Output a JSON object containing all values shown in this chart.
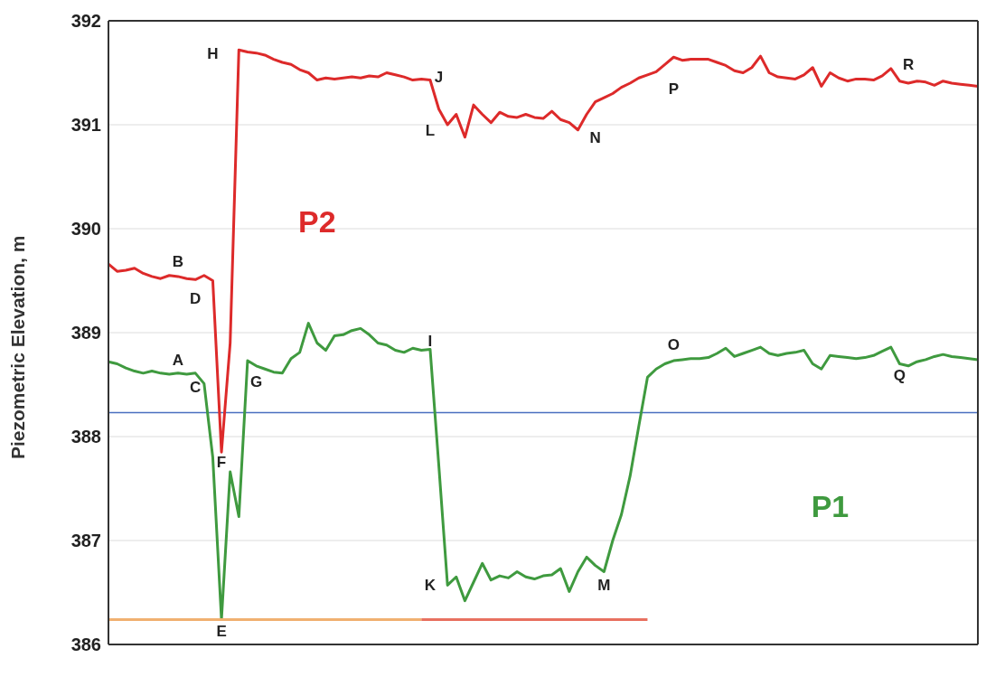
{
  "chart_data": {
    "type": "line",
    "ylabel": "Piezometric Elevation, m",
    "ylim": [
      386,
      392
    ],
    "yticks": [
      386,
      387,
      388,
      389,
      390,
      391,
      392
    ],
    "tick_labels": "y",
    "grid": "y",
    "marker": "none",
    "line_style": "solid",
    "categories": [
      null,
      null,
      null,
      null,
      null,
      null,
      null,
      null,
      null,
      null,
      null,
      null,
      null,
      null,
      null,
      null,
      null,
      null,
      null,
      null,
      null,
      null,
      null,
      null,
      null,
      null,
      null,
      null,
      null,
      null,
      null,
      null,
      null,
      null,
      null,
      null,
      null,
      null,
      null,
      null,
      null,
      null,
      null,
      null,
      null,
      null,
      null,
      null,
      null,
      null,
      null,
      null,
      null,
      null,
      null,
      null,
      null,
      null,
      null,
      null,
      null,
      null,
      null,
      null,
      null,
      null,
      null,
      null,
      null,
      null,
      null,
      null,
      null,
      null,
      null,
      null,
      null,
      null,
      null,
      null,
      null,
      null,
      null,
      null,
      null,
      null,
      null,
      null,
      null,
      null,
      null,
      null,
      null,
      null,
      null,
      null,
      null,
      null,
      null,
      null,
      null
    ],
    "series": [
      {
        "name": "P2",
        "color": "#dd2a2a",
        "values": [
          389.66,
          389.59,
          389.6,
          389.62,
          389.57,
          389.54,
          389.52,
          389.55,
          389.54,
          389.52,
          389.51,
          389.55,
          389.5,
          387.85,
          388.9,
          391.72,
          391.7,
          391.69,
          391.67,
          391.63,
          391.6,
          391.58,
          391.53,
          391.5,
          391.43,
          391.45,
          391.44,
          391.45,
          391.46,
          391.45,
          391.47,
          391.46,
          391.5,
          391.48,
          391.46,
          391.43,
          391.44,
          391.43,
          391.15,
          391.0,
          391.1,
          390.88,
          391.19,
          391.1,
          391.02,
          391.12,
          391.08,
          391.07,
          391.1,
          391.07,
          391.06,
          391.13,
          391.05,
          391.02,
          390.95,
          391.1,
          391.22,
          391.26,
          391.3,
          391.36,
          391.4,
          391.45,
          391.48,
          391.51,
          391.58,
          391.65,
          391.62,
          391.63,
          391.63,
          391.63,
          391.6,
          391.57,
          391.52,
          391.5,
          391.55,
          391.66,
          391.5,
          391.46,
          391.45,
          391.44,
          391.48,
          391.55,
          391.37,
          391.5,
          391.45,
          391.42,
          391.44,
          391.44,
          391.43,
          391.47,
          391.54,
          391.42,
          391.4,
          391.42,
          391.41,
          391.38,
          391.42,
          391.4,
          391.39,
          391.38,
          391.37
        ]
      },
      {
        "name": "P1",
        "color": "#3f9a3f",
        "values": [
          388.72,
          388.7,
          388.66,
          388.63,
          388.61,
          388.63,
          388.61,
          388.6,
          388.61,
          388.6,
          388.61,
          388.51,
          387.8,
          386.24,
          387.66,
          387.23,
          388.73,
          388.68,
          388.65,
          388.62,
          388.61,
          388.75,
          388.81,
          389.09,
          388.9,
          388.83,
          388.97,
          388.98,
          389.02,
          389.04,
          388.98,
          388.9,
          388.88,
          388.83,
          388.81,
          388.85,
          388.83,
          388.84,
          387.72,
          386.57,
          386.65,
          386.42,
          386.6,
          386.78,
          386.62,
          386.66,
          386.64,
          386.7,
          386.65,
          386.63,
          386.66,
          386.67,
          386.73,
          386.51,
          386.7,
          386.84,
          386.76,
          386.7,
          387.0,
          387.25,
          387.62,
          388.1,
          388.57,
          388.65,
          388.7,
          388.73,
          388.74,
          388.75,
          388.75,
          388.76,
          388.8,
          388.85,
          388.77,
          388.8,
          388.83,
          388.86,
          388.8,
          388.78,
          388.8,
          388.81,
          388.83,
          388.7,
          388.65,
          388.78,
          388.77,
          388.76,
          388.75,
          388.76,
          388.78,
          388.82,
          388.86,
          388.7,
          388.68,
          388.72,
          388.74,
          388.77,
          388.79,
          388.77,
          388.76,
          388.75,
          388.74
        ]
      },
      {
        "color": "#f0b070",
        "values": [
          386.24,
          386.24,
          386.24,
          386.24,
          386.24,
          386.24,
          386.24,
          386.24,
          386.24,
          386.24,
          386.24,
          386.24,
          386.24,
          386.24,
          386.24,
          386.24,
          386.24,
          386.24,
          386.24,
          386.24,
          386.24,
          386.24,
          386.24,
          386.24,
          386.24,
          386.24,
          386.24,
          386.24,
          386.24,
          386.24,
          386.24,
          386.24,
          386.24,
          386.24,
          386.24,
          386.24,
          386.24,
          null,
          null,
          null,
          null,
          null,
          null,
          null,
          null,
          null,
          null,
          null,
          null,
          null,
          null,
          null,
          null,
          null,
          null,
          null,
          null,
          null,
          null,
          null,
          null,
          null,
          null,
          null,
          null,
          null,
          null,
          null,
          null,
          null,
          null,
          null,
          null,
          null,
          null,
          null,
          null,
          null,
          null,
          null,
          null,
          null,
          null,
          null,
          null,
          null,
          null,
          null,
          null,
          null,
          null,
          null,
          null,
          null,
          null,
          null,
          null,
          null,
          null,
          null,
          null
        ]
      },
      {
        "color": "#e87060",
        "values": [
          null,
          null,
          null,
          null,
          null,
          null,
          null,
          null,
          null,
          null,
          null,
          null,
          null,
          null,
          null,
          null,
          null,
          null,
          null,
          null,
          null,
          null,
          null,
          null,
          null,
          null,
          null,
          null,
          null,
          null,
          null,
          null,
          null,
          null,
          null,
          null,
          386.24,
          386.24,
          386.24,
          386.24,
          386.24,
          386.24,
          386.24,
          386.24,
          386.24,
          386.24,
          386.24,
          386.24,
          386.24,
          386.24,
          386.24,
          386.24,
          386.24,
          386.24,
          386.24,
          386.24,
          386.24,
          386.24,
          386.24,
          386.24,
          386.24,
          386.24,
          386.24,
          null,
          null,
          null,
          null,
          null,
          null,
          null,
          null,
          null,
          null,
          null,
          null,
          null,
          null,
          null,
          null,
          null,
          null,
          null,
          null,
          null,
          null,
          null,
          null,
          null,
          null,
          null,
          null,
          null,
          null,
          null,
          null,
          null,
          null,
          null,
          null,
          null,
          null
        ]
      }
    ],
    "ref_lines": [
      {
        "axis": "y",
        "value": 388.23,
        "color": "#4a6fc0"
      }
    ],
    "annotations": [
      "A",
      "B",
      "C",
      "D",
      "E",
      "F",
      "G",
      "H",
      "I",
      "J",
      "K",
      "L",
      "M",
      "N",
      "O",
      "P",
      "Q",
      "R"
    ]
  }
}
